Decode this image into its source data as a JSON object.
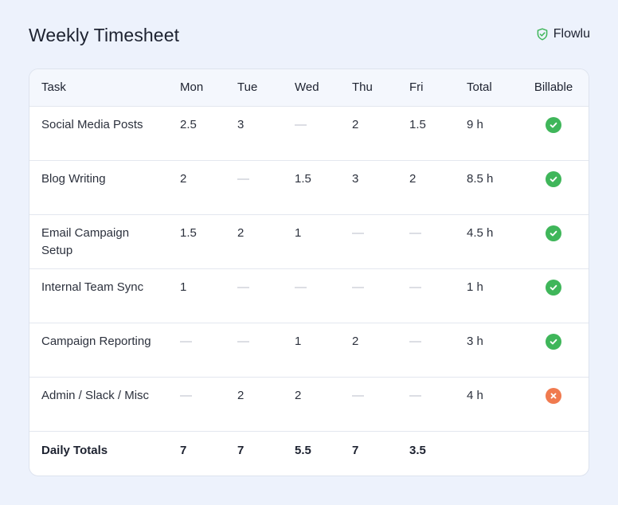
{
  "page": {
    "title": "Weekly Timesheet",
    "brand": "Flowlu",
    "colors": {
      "billable_yes": "#3fb65a",
      "billable_no": "#f07a4f",
      "brand_icon": "#3fb65a"
    }
  },
  "table": {
    "headers": [
      "Task",
      "Mon",
      "Tue",
      "Wed",
      "Thu",
      "Fri",
      "Total",
      "Billable"
    ],
    "rows": [
      {
        "task": "Social Media Posts",
        "mon": "2.5",
        "tue": "3",
        "wed": "—",
        "thu": "2",
        "fri": "1.5",
        "total": "9 h",
        "billable": true,
        "billable_icon": "check-circle-icon"
      },
      {
        "task": "Blog Writing",
        "mon": "2",
        "tue": "—",
        "wed": "1.5",
        "thu": "3",
        "fri": "2",
        "total": "8.5 h",
        "billable": true,
        "billable_icon": "check-circle-icon"
      },
      {
        "task": "Email Campaign Setup",
        "mon": "1.5",
        "tue": "2",
        "wed": "1",
        "thu": "—",
        "fri": "—",
        "total": "4.5 h",
        "billable": true,
        "billable_icon": "check-circle-icon"
      },
      {
        "task": "Internal Team Sync",
        "mon": "1",
        "tue": "—",
        "wed": "—",
        "thu": "—",
        "fri": "—",
        "total": "1 h",
        "billable": true,
        "billable_icon": "check-circle-icon"
      },
      {
        "task": "Campaign Reporting",
        "mon": "—",
        "tue": "—",
        "wed": "1",
        "thu": "2",
        "fri": "—",
        "total": "3 h",
        "billable": true,
        "billable_icon": "check-circle-icon"
      },
      {
        "task": "Admin / Slack / Misc",
        "mon": "—",
        "tue": "2",
        "wed": "2",
        "thu": "—",
        "fri": "—",
        "total": "4 h",
        "billable": false,
        "billable_icon": "x-circle-icon"
      }
    ],
    "footer": {
      "label": "Daily Totals",
      "mon": "7",
      "tue": "7",
      "wed": "5.5",
      "thu": "7",
      "fri": "3.5"
    }
  }
}
